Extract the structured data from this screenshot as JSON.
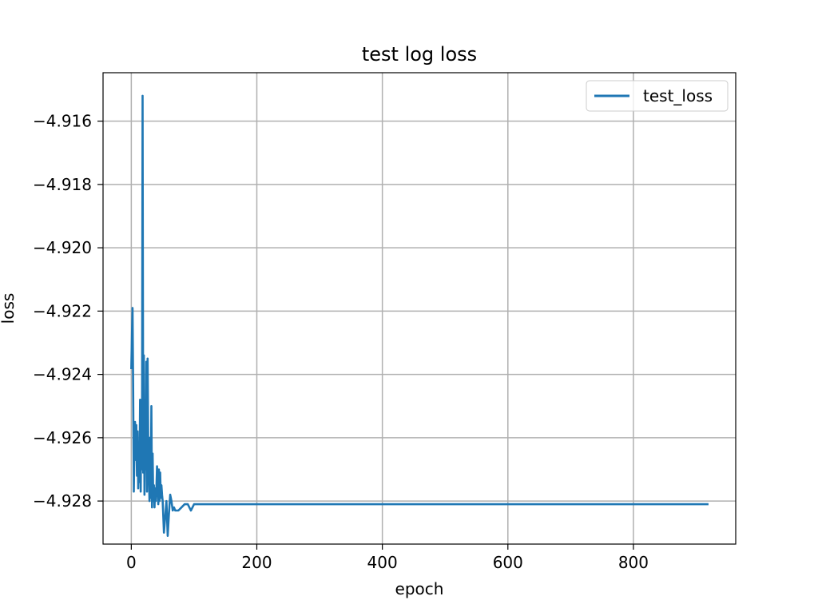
{
  "chart_data": {
    "type": "line",
    "title": "test log loss",
    "xlabel": "epoch",
    "ylabel": "loss",
    "xlim": [
      -45,
      963
    ],
    "ylim": [
      -4.92936,
      -4.91447
    ],
    "xticks": [
      0,
      200,
      400,
      600,
      800
    ],
    "xtick_labels": [
      "0",
      "200",
      "400",
      "600",
      "800"
    ],
    "yticks": [
      -4.916,
      -4.918,
      -4.92,
      -4.922,
      -4.924,
      -4.926,
      -4.928
    ],
    "ytick_labels": [
      "−4.916",
      "−4.918",
      "−4.920",
      "−4.922",
      "−4.924",
      "−4.926",
      "−4.928"
    ],
    "grid": true,
    "legend_position": "top-right",
    "series": [
      {
        "name": "test_loss",
        "color": "#1f77b4",
        "x": [
          0,
          1,
          2,
          3,
          4,
          5,
          6,
          7,
          8,
          9,
          10,
          11,
          12,
          13,
          14,
          15,
          16,
          17,
          18,
          19,
          20,
          21,
          22,
          23,
          24,
          25,
          26,
          27,
          28,
          29,
          30,
          31,
          32,
          33,
          34,
          35,
          36,
          37,
          38,
          39,
          40,
          41,
          42,
          43,
          44,
          45,
          46,
          47,
          48,
          49,
          50,
          52,
          54,
          56,
          58,
          60,
          62,
          64,
          66,
          68,
          70,
          75,
          80,
          85,
          90,
          95,
          100,
          110,
          120,
          130,
          150,
          200,
          300,
          400,
          500,
          600,
          700,
          800,
          918
        ],
        "values": [
          -4.9238,
          -4.9228,
          -4.9219,
          -4.9245,
          -4.9277,
          -4.9262,
          -4.9255,
          -4.9267,
          -4.9256,
          -4.9272,
          -4.9258,
          -4.9276,
          -4.9263,
          -4.9274,
          -4.9248,
          -4.9277,
          -4.925,
          -4.927,
          -4.9152,
          -4.9271,
          -4.9234,
          -4.9278,
          -4.926,
          -4.927,
          -4.9236,
          -4.9277,
          -4.9235,
          -4.9262,
          -4.9272,
          -4.928,
          -4.926,
          -4.9279,
          -4.925,
          -4.9282,
          -4.9265,
          -4.928,
          -4.9275,
          -4.9282,
          -4.9276,
          -4.928,
          -4.9276,
          -4.9269,
          -4.9274,
          -4.9281,
          -4.927,
          -4.928,
          -4.9271,
          -4.9279,
          -4.9275,
          -4.9278,
          -4.928,
          -4.929,
          -4.9285,
          -4.928,
          -4.9291,
          -4.9284,
          -4.9278,
          -4.928,
          -4.9283,
          -4.9282,
          -4.9283,
          -4.9283,
          -4.9282,
          -4.9281,
          -4.9281,
          -4.9283,
          -4.9281,
          -4.9281,
          -4.9281,
          -4.9281,
          -4.9281,
          -4.9281,
          -4.9281,
          -4.9281,
          -4.9281,
          -4.9281,
          -4.9281,
          -4.9281,
          -4.9281
        ]
      }
    ]
  }
}
